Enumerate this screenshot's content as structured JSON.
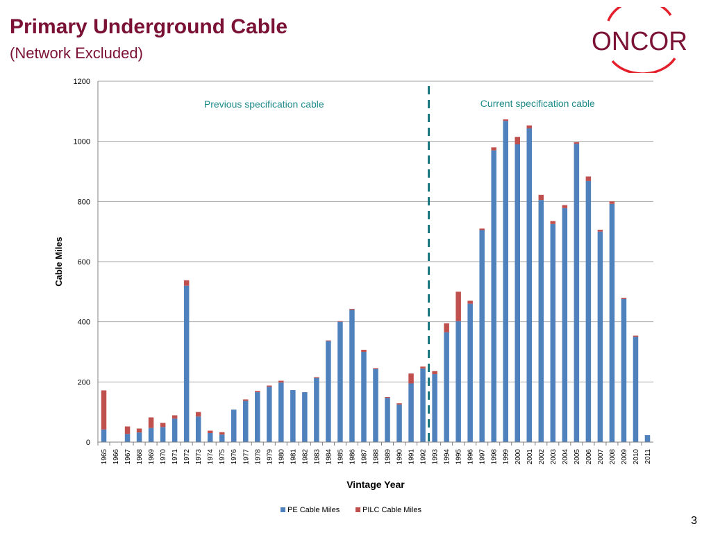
{
  "slide": {
    "title": "Primary Underground Cable",
    "subtitle": "(Network Excluded)",
    "logo_text": "ONCOR",
    "page_number": "3"
  },
  "colors": {
    "title": "#7b1236",
    "pe": "#4f81bd",
    "pilc": "#c0504d",
    "annotation": "#1f8a8a",
    "divider": "#17747c"
  },
  "chart_data": {
    "type": "bar",
    "stacked": true,
    "xlabel": "Vintage Year",
    "ylabel": "Cable Miles",
    "ylim": [
      0,
      1200
    ],
    "yticks": [
      0,
      200,
      400,
      600,
      800,
      1000,
      1200
    ],
    "grid": true,
    "legend_position": "bottom",
    "categories": [
      "1965",
      "1966",
      "1967",
      "1968",
      "1969",
      "1970",
      "1971",
      "1972",
      "1973",
      "1974",
      "1975",
      "1976",
      "1977",
      "1978",
      "1979",
      "1980",
      "1981",
      "1982",
      "1983",
      "1984",
      "1985",
      "1986",
      "1987",
      "1988",
      "1989",
      "1990",
      "1991",
      "1992",
      "1993",
      "1994",
      "1995",
      "1996",
      "1997",
      "1998",
      "1999",
      "2000",
      "2001",
      "2002",
      "2003",
      "2004",
      "2005",
      "2006",
      "2007",
      "2008",
      "2009",
      "2010",
      "2011"
    ],
    "series": [
      {
        "name": "PE Cable Miles",
        "values": [
          42,
          0,
          27,
          32,
          47,
          50,
          78,
          520,
          85,
          30,
          25,
          108,
          137,
          166,
          184,
          198,
          173,
          166,
          213,
          336,
          400,
          440,
          300,
          243,
          147,
          125,
          195,
          245,
          226,
          365,
          402,
          460,
          705,
          970,
          1068,
          990,
          1043,
          805,
          725,
          778,
          992,
          868,
          700,
          792,
          476,
          350,
          23
        ]
      },
      {
        "name": "PILC Cable Miles",
        "values": [
          130,
          0,
          25,
          13,
          35,
          14,
          11,
          18,
          15,
          8,
          8,
          0,
          5,
          4,
          4,
          6,
          0,
          0,
          3,
          2,
          2,
          3,
          7,
          3,
          3,
          4,
          33,
          6,
          10,
          30,
          98,
          10,
          5,
          10,
          5,
          25,
          10,
          17,
          10,
          10,
          5,
          15,
          6,
          8,
          4,
          4,
          0
        ]
      }
    ],
    "divider_after": "1992",
    "annotations": [
      {
        "text": "Previous specification cable"
      },
      {
        "text": "Current specification cable"
      }
    ]
  }
}
